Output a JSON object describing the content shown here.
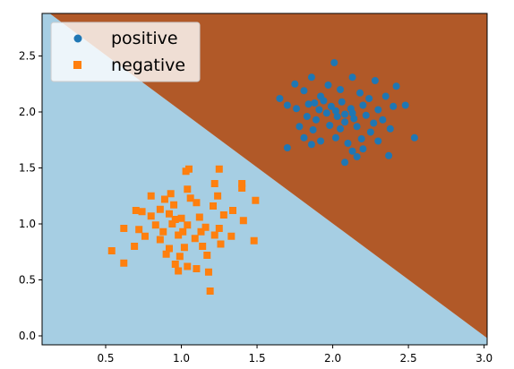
{
  "chart_data": {
    "type": "scatter",
    "title": "",
    "xlabel": "",
    "ylabel": "",
    "xlim": [
      0.08,
      3.02
    ],
    "ylim": [
      -0.08,
      2.88
    ],
    "xticks": [
      0.5,
      1.0,
      1.5,
      2.0,
      2.5,
      3.0
    ],
    "xtick_labels": [
      "0.5",
      "1.0",
      "1.5",
      "2.0",
      "2.5",
      "3.0"
    ],
    "yticks": [
      0.0,
      0.5,
      1.0,
      1.5,
      2.0,
      2.5
    ],
    "ytick_labels": [
      "0.0",
      "0.5",
      "1.0",
      "1.5",
      "2.0",
      "2.5"
    ],
    "grid": false,
    "legend": {
      "position": "upper-left",
      "entries": [
        "positive",
        "negative"
      ]
    },
    "decision_boundary": {
      "description": "linear classifier regions",
      "line_points": [
        [
          0.13,
          2.88
        ],
        [
          3.02,
          -0.02
        ]
      ],
      "region_above_color": "#b15928",
      "region_below_color": "#a6cee3"
    },
    "series": [
      {
        "name": "positive",
        "marker": "circle",
        "color": "#1f77b4",
        "points": [
          [
            2.01,
            2.44
          ],
          [
            1.86,
            2.31
          ],
          [
            2.13,
            2.31
          ],
          [
            2.28,
            2.28
          ],
          [
            1.75,
            2.25
          ],
          [
            2.42,
            2.23
          ],
          [
            1.65,
            2.12
          ],
          [
            1.81,
            2.19
          ],
          [
            1.92,
            2.14
          ],
          [
            1.97,
            2.24
          ],
          [
            2.05,
            2.2
          ],
          [
            2.18,
            2.17
          ],
          [
            2.24,
            2.12
          ],
          [
            2.35,
            2.14
          ],
          [
            2.48,
            2.06
          ],
          [
            1.7,
            2.06
          ],
          [
            1.76,
            2.03
          ],
          [
            1.84,
            2.07
          ],
          [
            1.91,
            2.02
          ],
          [
            1.99,
            2.05
          ],
          [
            2.06,
            2.09
          ],
          [
            2.12,
            2.03
          ],
          [
            2.2,
            2.06
          ],
          [
            2.3,
            2.02
          ],
          [
            2.4,
            2.05
          ],
          [
            1.83,
            1.96
          ],
          [
            1.89,
            1.93
          ],
          [
            1.96,
            1.99
          ],
          [
            2.03,
            1.96
          ],
          [
            2.08,
            1.98
          ],
          [
            2.14,
            1.94
          ],
          [
            2.22,
            1.97
          ],
          [
            2.27,
            1.9
          ],
          [
            2.33,
            1.93
          ],
          [
            1.78,
            1.87
          ],
          [
            1.87,
            1.84
          ],
          [
            1.98,
            1.88
          ],
          [
            2.05,
            1.85
          ],
          [
            2.16,
            1.87
          ],
          [
            2.25,
            1.82
          ],
          [
            2.38,
            1.85
          ],
          [
            1.81,
            1.77
          ],
          [
            1.92,
            1.74
          ],
          [
            2.02,
            1.77
          ],
          [
            2.1,
            1.72
          ],
          [
            2.19,
            1.76
          ],
          [
            2.3,
            1.74
          ],
          [
            2.54,
            1.77
          ],
          [
            1.7,
            1.68
          ],
          [
            1.86,
            1.71
          ],
          [
            2.13,
            1.65
          ],
          [
            2.2,
            1.67
          ],
          [
            2.37,
            1.61
          ],
          [
            2.08,
            1.55
          ],
          [
            2.16,
            1.6
          ],
          [
            2.13,
            1.99
          ],
          [
            2.02,
            2.01
          ],
          [
            1.94,
            2.1
          ],
          [
            2.08,
            1.91
          ],
          [
            1.88,
            2.08
          ]
        ]
      },
      {
        "name": "negative",
        "marker": "square",
        "color": "#ff7f0e",
        "points": [
          [
            1.03,
            1.47
          ],
          [
            1.05,
            1.49
          ],
          [
            1.25,
            1.49
          ],
          [
            1.4,
            1.36
          ],
          [
            1.4,
            1.32
          ],
          [
            1.22,
            1.36
          ],
          [
            1.04,
            1.31
          ],
          [
            0.93,
            1.27
          ],
          [
            0.8,
            1.25
          ],
          [
            0.89,
            1.22
          ],
          [
            1.06,
            1.23
          ],
          [
            1.24,
            1.25
          ],
          [
            1.49,
            1.21
          ],
          [
            0.7,
            1.12
          ],
          [
            0.74,
            1.11
          ],
          [
            0.86,
            1.13
          ],
          [
            0.95,
            1.17
          ],
          [
            1.1,
            1.19
          ],
          [
            1.34,
            1.12
          ],
          [
            1.21,
            1.16
          ],
          [
            0.8,
            1.07
          ],
          [
            0.92,
            1.09
          ],
          [
            1.0,
            1.05
          ],
          [
            1.12,
            1.06
          ],
          [
            1.28,
            1.08
          ],
          [
            1.41,
            1.03
          ],
          [
            0.62,
            0.96
          ],
          [
            0.72,
            0.95
          ],
          [
            0.83,
            0.99
          ],
          [
            0.94,
            1.0
          ],
          [
            1.04,
            0.99
          ],
          [
            1.16,
            0.97
          ],
          [
            1.25,
            0.96
          ],
          [
            0.76,
            0.89
          ],
          [
            0.86,
            0.86
          ],
          [
            0.98,
            0.9
          ],
          [
            1.09,
            0.87
          ],
          [
            1.22,
            0.9
          ],
          [
            1.33,
            0.89
          ],
          [
            1.48,
            0.85
          ],
          [
            0.69,
            0.8
          ],
          [
            0.92,
            0.78
          ],
          [
            1.02,
            0.79
          ],
          [
            1.14,
            0.8
          ],
          [
            1.26,
            0.82
          ],
          [
            0.54,
            0.76
          ],
          [
            0.9,
            0.73
          ],
          [
            0.99,
            0.71
          ],
          [
            1.17,
            0.72
          ],
          [
            0.62,
            0.65
          ],
          [
            0.96,
            0.64
          ],
          [
            1.04,
            0.62
          ],
          [
            1.1,
            0.6
          ],
          [
            1.18,
            0.57
          ],
          [
            0.98,
            0.58
          ],
          [
            1.19,
            0.4
          ],
          [
            1.01,
            0.93
          ],
          [
            0.96,
            1.04
          ],
          [
            1.13,
            0.93
          ],
          [
            0.88,
            0.93
          ]
        ]
      }
    ]
  }
}
